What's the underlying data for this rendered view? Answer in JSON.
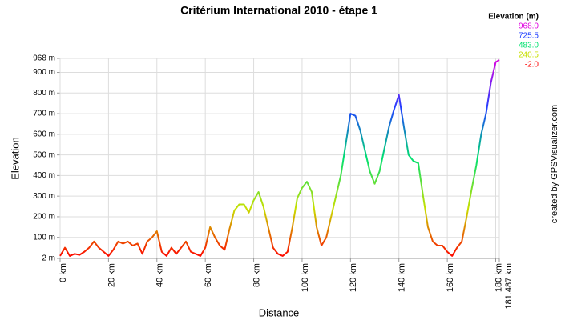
{
  "chart_data": {
    "type": "line",
    "title": "Critérium International 2010 - étape 1",
    "x_label": "Distance",
    "y_label": "Elevation",
    "credit": "created by GPSVisualizer.com",
    "legend_title": "Elevation (m)",
    "legend": [
      {
        "value": 968,
        "label": "968.0",
        "color": "#e000e0"
      },
      {
        "value": 725.5,
        "label": "725.5",
        "color": "#2040ff"
      },
      {
        "value": 483,
        "label": "483.0",
        "color": "#00e070"
      },
      {
        "value": 240.5,
        "label": "240.5",
        "color": "#c8e000"
      },
      {
        "value": -2,
        "label": "-2.0",
        "color": "#ff0000"
      }
    ],
    "grid": true,
    "xlim": [
      0,
      181.487
    ],
    "ylim": [
      -2,
      968
    ],
    "xticks": [
      {
        "value": 0,
        "label": "0 km"
      },
      {
        "value": 20,
        "label": "20 km"
      },
      {
        "value": 40,
        "label": "40 km"
      },
      {
        "value": 60,
        "label": "60 km"
      },
      {
        "value": 80,
        "label": "80 km"
      },
      {
        "value": 100,
        "label": "100 km"
      },
      {
        "value": 120,
        "label": "120 km"
      },
      {
        "value": 140,
        "label": "140 km"
      },
      {
        "value": 160,
        "label": "160 km"
      },
      {
        "value": 180,
        "label": "180 km"
      },
      {
        "value": 181.487,
        "label": "181.487 km"
      }
    ],
    "yticks": [
      {
        "value": -2,
        "label": "-2 m"
      },
      {
        "value": 100,
        "label": "100 m"
      },
      {
        "value": 200,
        "label": "200 m"
      },
      {
        "value": 300,
        "label": "300 m"
      },
      {
        "value": 400,
        "label": "400 m"
      },
      {
        "value": 500,
        "label": "500 m"
      },
      {
        "value": 600,
        "label": "600 m"
      },
      {
        "value": 700,
        "label": "700 m"
      },
      {
        "value": 800,
        "label": "800 m"
      },
      {
        "value": 900,
        "label": "900 m"
      },
      {
        "value": 968,
        "label": "968 m"
      }
    ],
    "x": [
      0,
      2,
      4,
      6,
      8,
      10,
      12,
      14,
      16,
      18,
      20,
      22,
      24,
      26,
      28,
      30,
      32,
      34,
      36,
      38,
      40,
      42,
      44,
      46,
      48,
      50,
      52,
      54,
      56,
      58,
      60,
      62,
      64,
      66,
      68,
      70,
      72,
      74,
      76,
      78,
      80,
      82,
      84,
      86,
      88,
      90,
      92,
      94,
      96,
      98,
      100,
      102,
      104,
      106,
      108,
      110,
      112,
      114,
      116,
      118,
      120,
      122,
      124,
      126,
      128,
      130,
      132,
      134,
      136,
      138,
      140,
      142,
      144,
      146,
      148,
      150,
      152,
      154,
      156,
      158,
      160,
      162,
      164,
      166,
      168,
      170,
      172,
      174,
      176,
      178,
      180,
      181.487
    ],
    "series": [
      {
        "name": "Elevation",
        "values": [
          10,
          50,
          10,
          20,
          15,
          30,
          50,
          80,
          50,
          30,
          10,
          40,
          80,
          70,
          80,
          60,
          70,
          20,
          80,
          100,
          130,
          30,
          10,
          50,
          20,
          50,
          80,
          30,
          20,
          10,
          50,
          150,
          100,
          60,
          40,
          140,
          230,
          260,
          260,
          220,
          280,
          320,
          250,
          150,
          50,
          20,
          10,
          30,
          150,
          290,
          340,
          370,
          320,
          150,
          60,
          100,
          200,
          300,
          400,
          550,
          700,
          690,
          620,
          520,
          420,
          360,
          420,
          530,
          640,
          720,
          790,
          640,
          500,
          470,
          460,
          300,
          150,
          80,
          60,
          60,
          30,
          10,
          50,
          80,
          200,
          330,
          450,
          600,
          700,
          850,
          950,
          960
        ]
      }
    ]
  }
}
